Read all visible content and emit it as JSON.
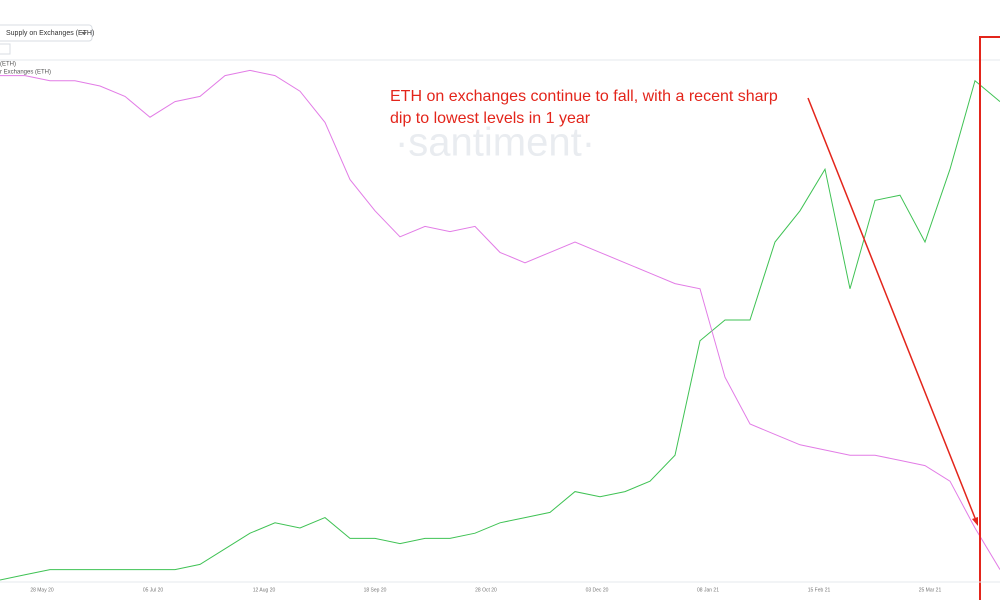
{
  "chart_data": {
    "type": "line",
    "metric_selector": "Supply on Exchanges (ETH)",
    "watermark": "·santiment·",
    "annotation": [
      "ETH on exchanges continue to fall, with a recent sharp",
      "dip to lowest levels in 1 year"
    ],
    "x_labels": [
      "28 May 20",
      "05 Jul 20",
      "12 Aug 20",
      "18 Sep 20",
      "28 Oct 20",
      "03 Dec 20",
      "08 Jan 21",
      "15 Feb 21",
      "25 Mar 21"
    ],
    "ylim": [
      0,
      100
    ],
    "series": [
      {
        "name": "(ETH)",
        "color": "#3fc254",
        "values": [
          0,
          1,
          2,
          2,
          2,
          2,
          2,
          2,
          3,
          6,
          9,
          11,
          10,
          12,
          8,
          8,
          7,
          8,
          8,
          9,
          11,
          12,
          13,
          17,
          16,
          17,
          19,
          24,
          46,
          50,
          50,
          65,
          71,
          79,
          56,
          73,
          74,
          65,
          79,
          96,
          92
        ]
      },
      {
        "name": "r Exchanges (ETH)",
        "color": "#e27ce6",
        "values": [
          97,
          97,
          96,
          96,
          95,
          93,
          89,
          92,
          93,
          97,
          98,
          97,
          94,
          88,
          77,
          71,
          66,
          68,
          67,
          68,
          63,
          61,
          63,
          65,
          63,
          61,
          59,
          57,
          56,
          39,
          30,
          28,
          26,
          25,
          24,
          24,
          23,
          22,
          19,
          10,
          2
        ]
      }
    ]
  }
}
